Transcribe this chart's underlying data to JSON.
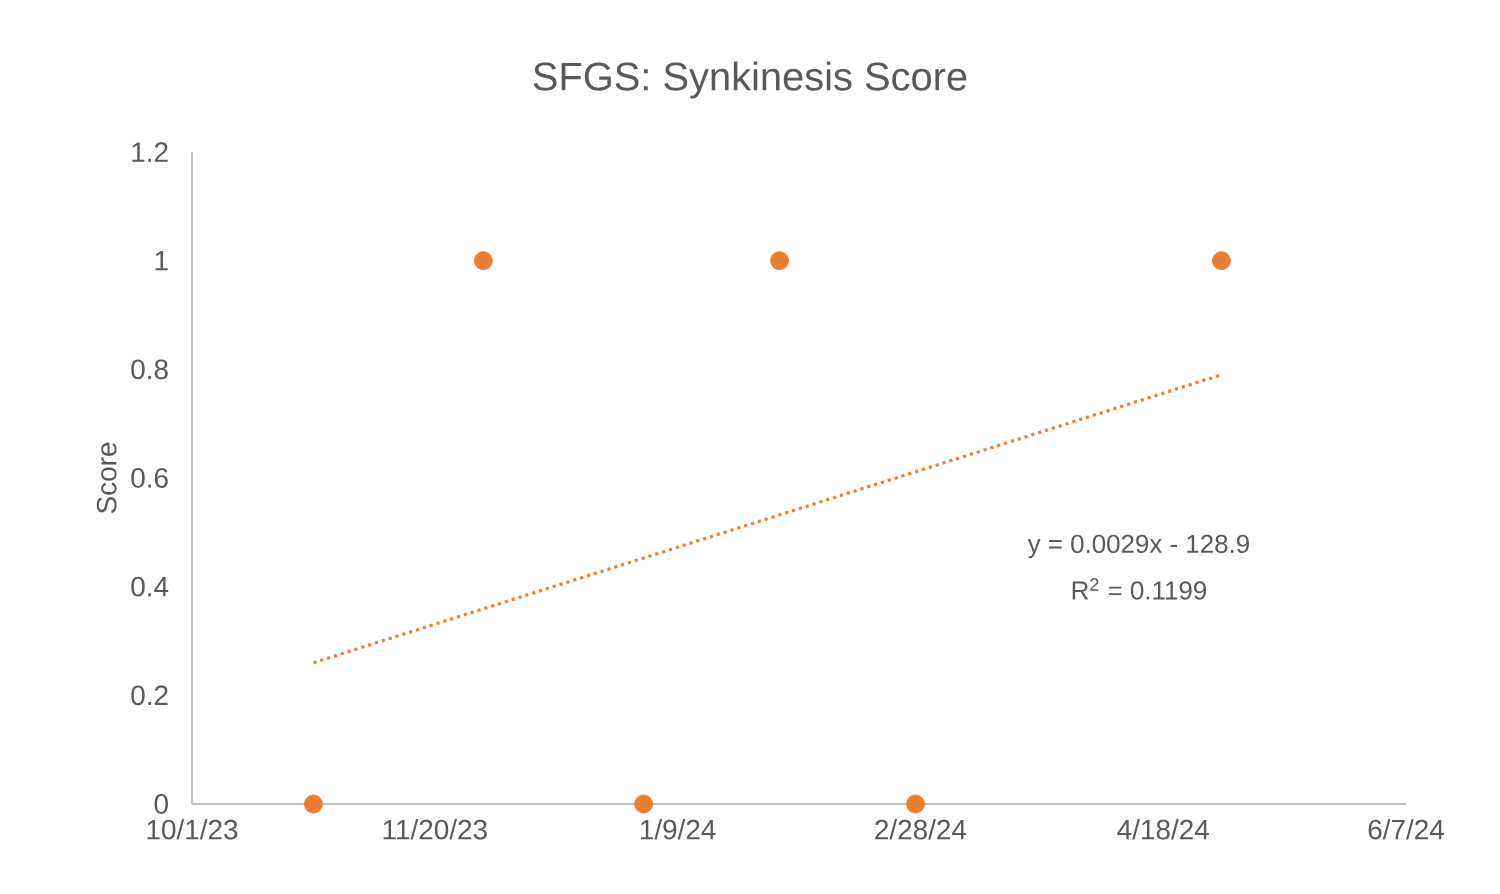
{
  "chart_data": {
    "type": "scatter",
    "title": "SFGS: Synkinesis Score",
    "ylabel": "Score",
    "x": [
      "2023-10-26",
      "2023-11-30",
      "2024-01-02",
      "2024-01-30",
      "2024-02-27",
      "2024-04-30"
    ],
    "series": [
      {
        "color": "#ed7d31",
        "marker": "circle",
        "values": [
          0,
          1,
          0,
          1,
          0,
          1
        ]
      },
      {
        "type": "line",
        "color": "#ed7d31",
        "marker": "none",
        "line_style": "dotted",
        "x": [
          "2023-10-26",
          "2024-04-30"
        ],
        "values": [
          0.26,
          0.79
        ]
      }
    ],
    "annotations": [
      "y = 0.0029x - 128.9",
      "R$^{2}$ = 0.1199"
    ],
    "xlim": [
      "2023-10-01",
      "2024-06-07"
    ],
    "xticks": [
      {
        "value": "2023-10-01",
        "label": "10/1/23"
      },
      {
        "value": "2023-11-20",
        "label": "11/20/23"
      },
      {
        "value": "2024-01-09",
        "label": "1/9/24"
      },
      {
        "value": "2024-02-28",
        "label": "2/28/24"
      },
      {
        "value": "2024-04-18",
        "label": "4/18/24"
      },
      {
        "value": "2024-06-07",
        "label": "6/7/24"
      }
    ],
    "ylim": [
      0,
      1.2
    ],
    "yticks": [
      0,
      0.2,
      0.4,
      0.6,
      0.8,
      1,
      1.2
    ],
    "grid": false
  }
}
